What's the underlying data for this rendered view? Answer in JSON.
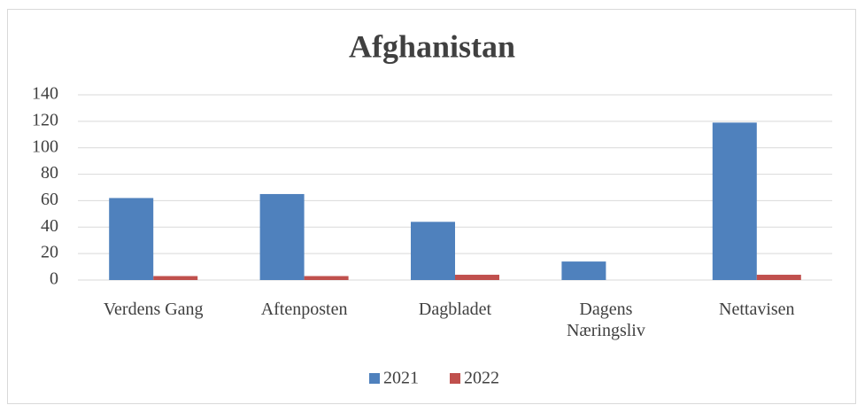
{
  "chart_data": {
    "type": "bar",
    "title": "Afghanistan",
    "categories": [
      "Verdens Gang",
      "Aftenposten",
      "Dagbladet",
      "Dagens Næringsliv",
      "Nettavisen"
    ],
    "series": [
      {
        "name": "2021",
        "color": "#4f81bd",
        "values": [
          62,
          65,
          44,
          14,
          119
        ]
      },
      {
        "name": "2022",
        "color": "#c0504d",
        "values": [
          3,
          3,
          4,
          0,
          4
        ]
      }
    ],
    "ylim": [
      0,
      140
    ],
    "yticks": [
      0,
      20,
      40,
      60,
      80,
      100,
      120,
      140
    ],
    "grid": true,
    "legend": "bottom"
  }
}
